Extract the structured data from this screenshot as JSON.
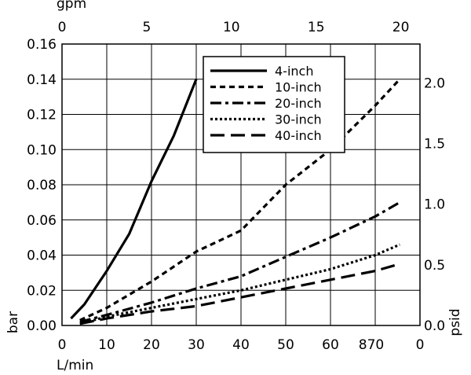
{
  "chart_data": {
    "type": "line",
    "axes": {
      "bottom": {
        "label": "L/min",
        "range": [
          0,
          80
        ],
        "ticks": [
          0,
          10,
          20,
          30,
          40,
          50,
          60
        ],
        "extra_tick_text": "870",
        "end_tick_text": "0"
      },
      "top": {
        "label": "gpm",
        "range": [
          0,
          21.13
        ],
        "ticks": [
          0,
          5,
          10,
          15,
          20
        ]
      },
      "left": {
        "label": "bar",
        "range": [
          0,
          0.16
        ],
        "ticks": [
          "0.00",
          "0.02",
          "0.04",
          "0.06",
          "0.08",
          "0.10",
          "0.12",
          "0.14",
          "0.16"
        ]
      },
      "right": {
        "label": "psid",
        "range": [
          0,
          2.32
        ],
        "ticks": [
          "0.0",
          "0.5",
          "1.0",
          "1.5",
          "2.0"
        ]
      }
    },
    "grid": true,
    "legend_position": "top-right",
    "series": [
      {
        "name": "4-inch",
        "dash": "solid",
        "points": [
          [
            2,
            0.004
          ],
          [
            5,
            0.012
          ],
          [
            10,
            0.031
          ],
          [
            15,
            0.052
          ],
          [
            20,
            0.082
          ],
          [
            25,
            0.108
          ],
          [
            30,
            0.14
          ]
        ]
      },
      {
        "name": "10-inch",
        "dash": "short-dash",
        "points": [
          [
            4,
            0.003
          ],
          [
            10,
            0.01
          ],
          [
            20,
            0.025
          ],
          [
            30,
            0.042
          ],
          [
            40,
            0.054
          ],
          [
            50,
            0.08
          ],
          [
            60,
            0.1
          ],
          [
            70,
            0.125
          ],
          [
            75.5,
            0.14
          ]
        ]
      },
      {
        "name": "20-inch",
        "dash": "dash-dot",
        "points": [
          [
            4,
            0.002
          ],
          [
            10,
            0.006
          ],
          [
            20,
            0.013
          ],
          [
            30,
            0.021
          ],
          [
            40,
            0.028
          ],
          [
            50,
            0.039
          ],
          [
            60,
            0.05
          ],
          [
            70,
            0.062
          ],
          [
            75.5,
            0.07
          ]
        ]
      },
      {
        "name": "30-inch",
        "dash": "dotted",
        "points": [
          [
            4,
            0.001
          ],
          [
            10,
            0.005
          ],
          [
            20,
            0.01
          ],
          [
            30,
            0.015
          ],
          [
            40,
            0.02
          ],
          [
            50,
            0.026
          ],
          [
            60,
            0.032
          ],
          [
            70,
            0.04
          ],
          [
            75.5,
            0.046
          ]
        ]
      },
      {
        "name": "40-inch",
        "dash": "long-dash",
        "points": [
          [
            4,
            0.001
          ],
          [
            10,
            0.004
          ],
          [
            20,
            0.008
          ],
          [
            30,
            0.011
          ],
          [
            40,
            0.016
          ],
          [
            50,
            0.021
          ],
          [
            60,
            0.026
          ],
          [
            70,
            0.031
          ],
          [
            75.5,
            0.035
          ]
        ]
      }
    ]
  },
  "colors": {
    "line": "#000000",
    "background": "#ffffff"
  }
}
